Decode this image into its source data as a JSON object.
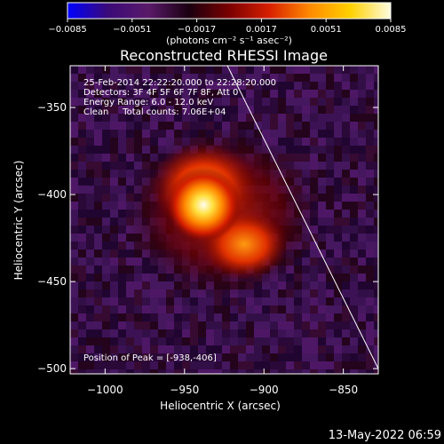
{
  "chart_data": {
    "type": "heatmap",
    "title": "Reconstructed RHESSI Image",
    "xlabel": "Heliocentric X (arcsec)",
    "ylabel": "Heliocentric Y (arcsec)",
    "xlim": [
      -1022,
      -828
    ],
    "ylim": [
      -503,
      -326
    ],
    "x_ticks": [
      -1000,
      -950,
      -900,
      -850
    ],
    "x_tick_labels": [
      "−1000",
      "−950",
      "−900",
      "−850"
    ],
    "y_ticks": [
      -350,
      -400,
      -450,
      -500
    ],
    "y_tick_labels": [
      "−350",
      "−400",
      "−450",
      "−500"
    ],
    "colorbar": {
      "range": [
        -0.0085,
        0.0085
      ],
      "colors": [
        "#0000ff",
        "#3a0a78",
        "#5a1a6a",
        "#1a0010",
        "#7a0000",
        "#d82000",
        "#ff8a00",
        "#ffd000",
        "#fffde0"
      ],
      "ticks": [
        -0.0085,
        -0.0051,
        -0.0017,
        0.0017,
        0.0051,
        0.0085
      ],
      "tick_labels": [
        "−0.0085",
        "−0.0051",
        "−0.0017",
        "0.0017",
        "0.0051",
        "0.0085"
      ],
      "units": "(photons cm⁻² s⁻¹ asec⁻²)"
    },
    "annotations": [
      "25-Feb-2014 22:22:20.000 to 22:28:20.000",
      "Detectors: 3F 4F 5F 6F 7F 8F, Att 0",
      "Energy Range: 6.0 - 12.0 keV",
      "Clean     Total counts: 7.06E+04"
    ],
    "peak_label": "Position of Peak = [-938,-406]",
    "peak": [
      -938,
      -406
    ],
    "limb_line": [
      [
        -923,
        -326
      ],
      [
        -828,
        -500
      ]
    ],
    "grid": false
  },
  "timestamp": "13-May-2022 06:59"
}
